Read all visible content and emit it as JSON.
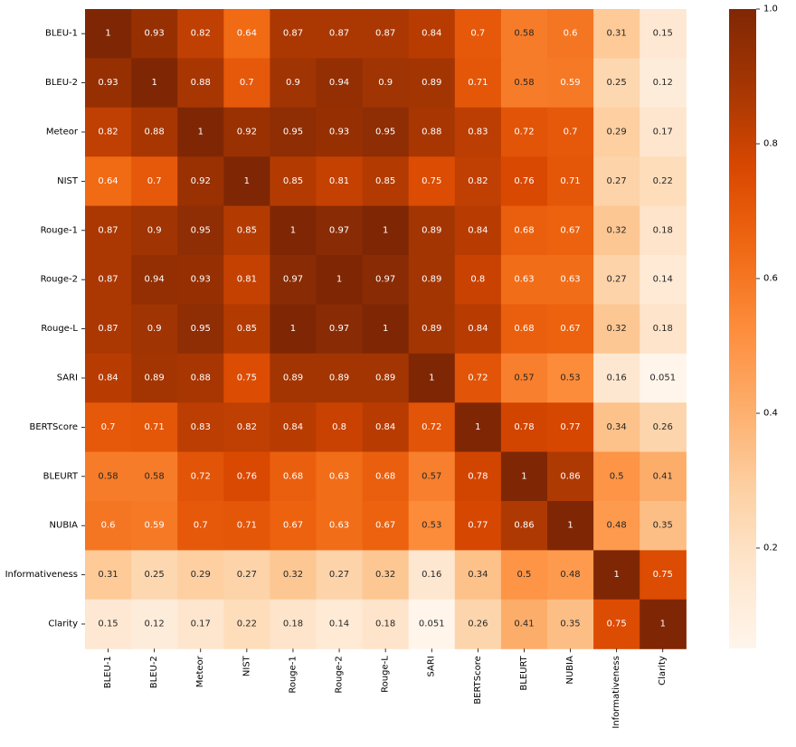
{
  "chart_data": {
    "type": "heatmap",
    "title": "",
    "xlabel": "",
    "ylabel": "",
    "colormap": "Oranges",
    "color_stops": [
      "#fff5eb",
      "#fee6ce",
      "#fdd0a2",
      "#fdae6b",
      "#fd8d3c",
      "#f16913",
      "#d94801",
      "#a63603",
      "#7f2704"
    ],
    "vmin": 0.051,
    "vmax": 1.0,
    "labels": [
      "BLEU-1",
      "BLEU-2",
      "Meteor",
      "NIST",
      "Rouge-1",
      "Rouge-2",
      "Rouge-L",
      "SARI",
      "BERTScore",
      "BLEURT",
      "NUBIA",
      "Informativeness",
      "Clarity"
    ],
    "matrix": [
      [
        "1",
        "0.93",
        "0.82",
        "0.64",
        "0.87",
        "0.87",
        "0.87",
        "0.84",
        "0.7",
        "0.58",
        "0.6",
        "0.31",
        "0.15"
      ],
      [
        "0.93",
        "1",
        "0.88",
        "0.7",
        "0.9",
        "0.94",
        "0.9",
        "0.89",
        "0.71",
        "0.58",
        "0.59",
        "0.25",
        "0.12"
      ],
      [
        "0.82",
        "0.88",
        "1",
        "0.92",
        "0.95",
        "0.93",
        "0.95",
        "0.88",
        "0.83",
        "0.72",
        "0.7",
        "0.29",
        "0.17"
      ],
      [
        "0.64",
        "0.7",
        "0.92",
        "1",
        "0.85",
        "0.81",
        "0.85",
        "0.75",
        "0.82",
        "0.76",
        "0.71",
        "0.27",
        "0.22"
      ],
      [
        "0.87",
        "0.9",
        "0.95",
        "0.85",
        "1",
        "0.97",
        "1",
        "0.89",
        "0.84",
        "0.68",
        "0.67",
        "0.32",
        "0.18"
      ],
      [
        "0.87",
        "0.94",
        "0.93",
        "0.81",
        "0.97",
        "1",
        "0.97",
        "0.89",
        "0.8",
        "0.63",
        "0.63",
        "0.27",
        "0.14"
      ],
      [
        "0.87",
        "0.9",
        "0.95",
        "0.85",
        "1",
        "0.97",
        "1",
        "0.89",
        "0.84",
        "0.68",
        "0.67",
        "0.32",
        "0.18"
      ],
      [
        "0.84",
        "0.89",
        "0.88",
        "0.75",
        "0.89",
        "0.89",
        "0.89",
        "1",
        "0.72",
        "0.57",
        "0.53",
        "0.16",
        "0.051"
      ],
      [
        "0.7",
        "0.71",
        "0.83",
        "0.82",
        "0.84",
        "0.8",
        "0.84",
        "0.72",
        "1",
        "0.78",
        "0.77",
        "0.34",
        "0.26"
      ],
      [
        "0.58",
        "0.58",
        "0.72",
        "0.76",
        "0.68",
        "0.63",
        "0.68",
        "0.57",
        "0.78",
        "1",
        "0.86",
        "0.5",
        "0.41"
      ],
      [
        "0.6",
        "0.59",
        "0.7",
        "0.71",
        "0.67",
        "0.63",
        "0.67",
        "0.53",
        "0.77",
        "0.86",
        "1",
        "0.48",
        "0.35"
      ],
      [
        "0.31",
        "0.25",
        "0.29",
        "0.27",
        "0.32",
        "0.27",
        "0.32",
        "0.16",
        "0.34",
        "0.5",
        "0.48",
        "1",
        "0.75"
      ],
      [
        "0.15",
        "0.12",
        "0.17",
        "0.22",
        "0.18",
        "0.14",
        "0.18",
        "0.051",
        "0.26",
        "0.41",
        "0.35",
        "0.75",
        "1"
      ]
    ],
    "colorbar": {
      "ticks": [
        "0.2",
        "0.4",
        "0.6",
        "0.8",
        "1.0"
      ]
    }
  }
}
